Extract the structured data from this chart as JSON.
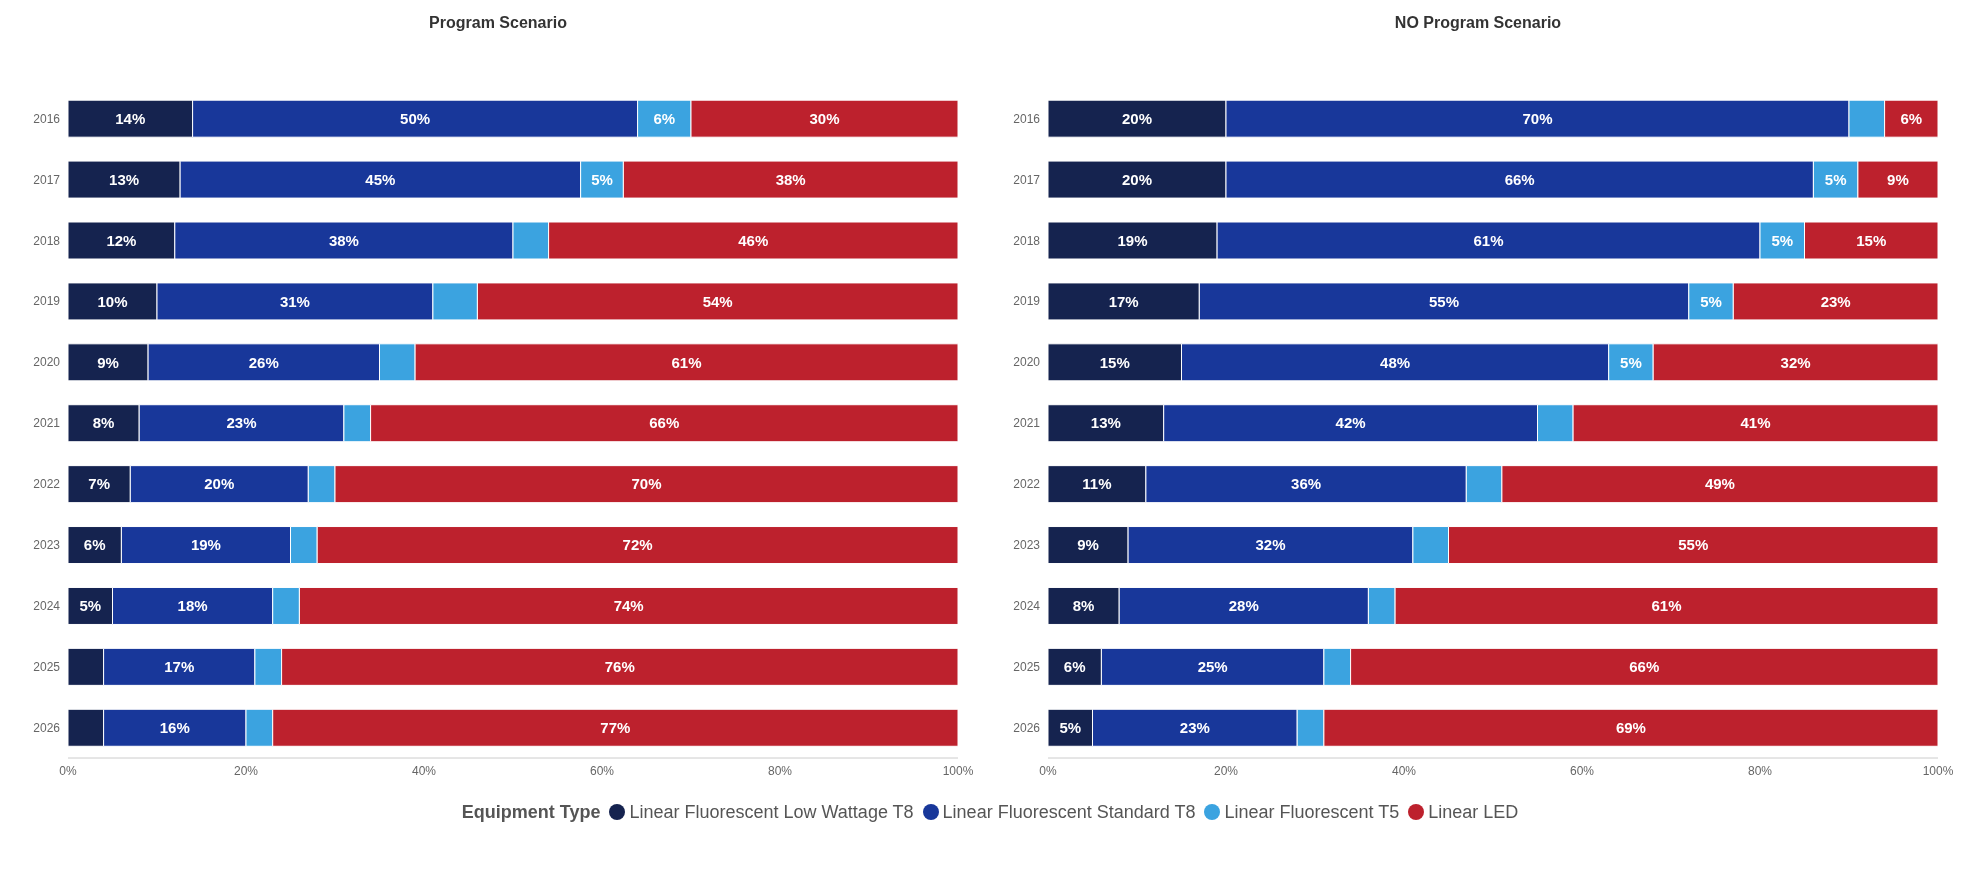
{
  "chart_data": [
    {
      "type": "bar",
      "title": "Program Scenario",
      "orientation": "horizontal",
      "stacked": true,
      "categories": [
        "2016",
        "2017",
        "2018",
        "2019",
        "2020",
        "2021",
        "2022",
        "2023",
        "2024",
        "2025",
        "2026"
      ],
      "xlim": [
        0,
        100
      ],
      "xticks": [
        {
          "value": 0,
          "label": "0%"
        },
        {
          "value": 20,
          "label": "20%"
        },
        {
          "value": 40,
          "label": "40%"
        },
        {
          "value": 60,
          "label": "60%"
        },
        {
          "value": 80,
          "label": "80%"
        },
        {
          "value": 100,
          "label": "100%"
        }
      ],
      "grid": false,
      "legend": "bottom",
      "legend_title": "Equipment Type",
      "series": [
        {
          "name": "Linear Fluorescent Low Wattage T8",
          "color": "#15234f",
          "values": [
            14,
            12.6,
            12,
            10,
            9,
            8,
            7,
            6,
            5,
            4,
            4
          ],
          "value_labels": [
            "14%",
            "13%",
            "12%",
            "10%",
            "9%",
            "8%",
            "7%",
            "6%",
            "5%",
            null,
            null
          ]
        },
        {
          "name": "Linear Fluorescent Standard T8",
          "color": "#18379a",
          "values": [
            50,
            45,
            38,
            31,
            26,
            23,
            20,
            19,
            18,
            17,
            16
          ],
          "value_labels": [
            "50%",
            "45%",
            "38%",
            "31%",
            "26%",
            "23%",
            "20%",
            "19%",
            "18%",
            "17%",
            "16%"
          ]
        },
        {
          "name": "Linear Fluorescent T5",
          "color": "#3ba3e0",
          "values": [
            6,
            4.8,
            4,
            5,
            4,
            3,
            3,
            3,
            3,
            3,
            3
          ],
          "value_labels": [
            "6%",
            "5%",
            null,
            null,
            null,
            null,
            null,
            null,
            null,
            null,
            null
          ]
        },
        {
          "name": "Linear LED",
          "color": "#bd212d",
          "values": [
            30,
            37.6,
            46,
            54,
            61,
            66,
            70,
            72,
            74,
            76,
            77
          ],
          "value_labels": [
            "30%",
            "38%",
            "46%",
            "54%",
            "61%",
            "66%",
            "70%",
            "72%",
            "74%",
            "76%",
            "77%"
          ]
        }
      ]
    },
    {
      "type": "bar",
      "title": "NO Program Scenario",
      "orientation": "horizontal",
      "stacked": true,
      "categories": [
        "2016",
        "2017",
        "2018",
        "2019",
        "2020",
        "2021",
        "2022",
        "2023",
        "2024",
        "2025",
        "2026"
      ],
      "xlim": [
        0,
        100
      ],
      "xticks": [
        {
          "value": 0,
          "label": "0%"
        },
        {
          "value": 20,
          "label": "20%"
        },
        {
          "value": 40,
          "label": "40%"
        },
        {
          "value": 60,
          "label": "60%"
        },
        {
          "value": 80,
          "label": "80%"
        },
        {
          "value": 100,
          "label": "100%"
        }
      ],
      "grid": false,
      "series": [
        {
          "color": "#15234f",
          "values": [
            20,
            20,
            19,
            17,
            15,
            13,
            11,
            9,
            8,
            6,
            5
          ],
          "value_labels": [
            "20%",
            "20%",
            "19%",
            "17%",
            "15%",
            "13%",
            "11%",
            "9%",
            "8%",
            "6%",
            "5%"
          ]
        },
        {
          "color": "#18379a",
          "values": [
            70,
            66,
            61,
            55,
            48,
            42,
            36,
            32,
            28,
            25,
            23
          ],
          "value_labels": [
            "70%",
            "66%",
            "61%",
            "55%",
            "48%",
            "42%",
            "36%",
            "32%",
            "28%",
            "25%",
            "23%"
          ]
        },
        {
          "color": "#3ba3e0",
          "values": [
            4,
            5,
            5,
            5,
            5,
            4,
            4,
            4,
            3,
            3,
            3
          ],
          "value_labels": [
            null,
            "5%",
            "5%",
            "5%",
            "5%",
            null,
            null,
            null,
            null,
            null,
            null
          ]
        },
        {
          "color": "#bd212d",
          "values": [
            6,
            9,
            15,
            23,
            32,
            41,
            49,
            55,
            61,
            66,
            69
          ],
          "value_labels": [
            "6%",
            "9%",
            "15%",
            "23%",
            "32%",
            "41%",
            "49%",
            "55%",
            "61%",
            "66%",
            "69%"
          ]
        }
      ]
    }
  ]
}
